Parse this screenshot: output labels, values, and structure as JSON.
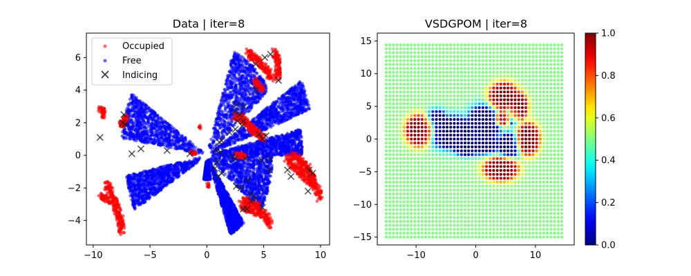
{
  "chart_data": [
    {
      "type": "scatter",
      "title": "Data | iter=8",
      "xlim": [
        -10.6,
        10.8
      ],
      "ylim": [
        -5.5,
        7.5
      ],
      "xticks": [
        -10,
        -5,
        0,
        5,
        10
      ],
      "yticks": [
        -4,
        -2,
        0,
        2,
        4,
        6
      ],
      "xtick_labels": [
        "−10",
        "−5",
        "0",
        "5",
        "10"
      ],
      "ytick_labels": [
        "−4",
        "−2",
        "0",
        "2",
        "4",
        "6"
      ],
      "grid": false,
      "legend_position": "top-left",
      "legend": [
        {
          "label": "Occupied",
          "marker": "dot",
          "color": "#ff0000"
        },
        {
          "label": "Free",
          "marker": "dot",
          "color": "#0000ff"
        },
        {
          "label": "Indicing",
          "marker": "x",
          "color": "#222222"
        }
      ],
      "free_wedges": [
        {
          "angle_from": 17,
          "angle_to": 29,
          "radius_from": 0.2,
          "radius_to": 9.5
        },
        {
          "angle_from": 36,
          "angle_to": 70,
          "radius_from": 0.2,
          "radius_to": 6.8
        },
        {
          "angle_from": 150,
          "angle_to": 172,
          "radius_from": 0.2,
          "radius_to": 7.6
        },
        {
          "angle_from": 190,
          "angle_to": 208,
          "radius_from": 0.2,
          "radius_to": 7.2
        },
        {
          "angle_from": 260,
          "angle_to": 282,
          "radius_from": 0.3,
          "radius_to": 1.5
        },
        {
          "angle_from": 293,
          "angle_to": 308,
          "radius_from": 0.2,
          "radius_to": 5.3
        },
        {
          "angle_from": 324,
          "angle_to": 360,
          "radius_from": 0.2,
          "radius_to": 5.8
        },
        {
          "angle_from": 0,
          "angle_to": 11,
          "radius_from": 0.2,
          "radius_to": 8.4
        }
      ],
      "occupied_polylines": [
        {
          "points": [
            [
              3.6,
              6.3
            ],
            [
              4.0,
              6.1
            ],
            [
              4.4,
              5.9
            ],
            [
              4.9,
              5.5
            ],
            [
              5.3,
              5.1
            ],
            [
              5.7,
              4.8
            ]
          ],
          "width": 0.55
        },
        {
          "points": [
            [
              5.9,
              6.4
            ],
            [
              6.2,
              6.0
            ],
            [
              6.3,
              5.6
            ],
            [
              6.3,
              5.2
            ],
            [
              6.2,
              4.8
            ]
          ],
          "width": 0.5
        },
        {
          "points": [
            [
              4.2,
              4.6
            ],
            [
              4.6,
              4.3
            ],
            [
              4.9,
              4.0
            ]
          ],
          "width": 0.35
        },
        {
          "points": [
            [
              2.5,
              2.4
            ],
            [
              2.9,
              2.3
            ],
            [
              3.3,
              2.1
            ],
            [
              3.8,
              1.8
            ],
            [
              4.2,
              1.5
            ],
            [
              4.6,
              1.3
            ],
            [
              5.0,
              1.0
            ]
          ],
          "width": 0.5
        },
        {
          "points": [
            [
              2.6,
              0.0
            ],
            [
              3.0,
              0.0
            ],
            [
              3.4,
              -0.1
            ]
          ],
          "width": 0.3
        },
        {
          "points": [
            [
              7.1,
              -0.2
            ],
            [
              7.4,
              -0.4
            ],
            [
              7.7,
              -0.7
            ],
            [
              8.2,
              -1.0
            ],
            [
              8.7,
              -1.3
            ],
            [
              9.2,
              -1.6
            ],
            [
              9.7,
              -2.1
            ],
            [
              9.9,
              -2.6
            ]
          ],
          "width": 0.55
        },
        {
          "points": [
            [
              7.6,
              0.0
            ],
            [
              7.9,
              -0.1
            ],
            [
              8.3,
              -0.4
            ],
            [
              8.7,
              -0.7
            ],
            [
              9.1,
              -1.0
            ],
            [
              9.4,
              -1.5
            ]
          ],
          "width": 0.5
        },
        {
          "points": [
            [
              3.0,
              -3.0
            ],
            [
              3.5,
              -3.2
            ],
            [
              4.0,
              -3.4
            ],
            [
              4.5,
              -3.5
            ],
            [
              5.0,
              -3.6
            ],
            [
              5.4,
              -3.9
            ],
            [
              5.6,
              -4.3
            ]
          ],
          "width": 0.5
        },
        {
          "points": [
            [
              3.2,
              -2.7
            ],
            [
              3.6,
              -2.8
            ],
            [
              4.0,
              -3.0
            ],
            [
              4.6,
              -3.1
            ]
          ],
          "width": 0.35
        },
        {
          "points": [
            [
              -8.8,
              -1.7
            ],
            [
              -8.6,
              -2.1
            ],
            [
              -8.3,
              -2.6
            ],
            [
              -8.0,
              -3.1
            ],
            [
              -7.8,
              -3.6
            ],
            [
              -7.6,
              -4.0
            ],
            [
              -7.5,
              -4.4
            ],
            [
              -7.6,
              -4.7
            ]
          ],
          "width": 0.55
        },
        {
          "points": [
            [
              -9.4,
              -2.5
            ],
            [
              -9.0,
              -2.6
            ],
            [
              -8.6,
              -2.8
            ]
          ],
          "width": 0.35
        },
        {
          "points": [
            [
              -9.4,
              2.9
            ],
            [
              -9.1,
              2.7
            ],
            [
              -9.1,
              2.4
            ]
          ],
          "width": 0.35
        },
        {
          "points": [
            [
              -7.6,
              1.9
            ],
            [
              -7.3,
              2.1
            ],
            [
              -7.1,
              2.3
            ],
            [
              -7.5,
              1.8
            ]
          ],
          "width": 0.35
        },
        {
          "points": [
            [
              -1.4,
              0.2
            ],
            [
              -1.0,
              0.1
            ]
          ],
          "width": 0.2
        },
        {
          "points": [
            [
              0.1,
              -1.7
            ],
            [
              0.1,
              -1.9
            ]
          ],
          "width": 0.2
        },
        {
          "points": [
            [
              -0.6,
              1.7
            ],
            [
              -0.6,
              1.8
            ]
          ],
          "width": 0.2
        }
      ],
      "indicing_points": [
        [
          5.1,
          6.0
        ],
        [
          5.6,
          6.2
        ],
        [
          4.3,
          5.6
        ],
        [
          6.3,
          4.6
        ],
        [
          4.3,
          4.0
        ],
        [
          2.6,
          3.1
        ],
        [
          3.2,
          3.0
        ],
        [
          2.5,
          2.7
        ],
        [
          2.9,
          2.5
        ],
        [
          2.7,
          2.1
        ],
        [
          3.2,
          2.1
        ],
        [
          2.5,
          1.6
        ],
        [
          3.1,
          1.8
        ],
        [
          2.0,
          1.4
        ],
        [
          4.6,
          1.3
        ],
        [
          4.9,
          1.0
        ],
        [
          5.2,
          1.2
        ],
        [
          1.1,
          0.8
        ],
        [
          1.3,
          0.9
        ],
        [
          0.8,
          0.3
        ],
        [
          1.2,
          0.2
        ],
        [
          2.2,
          -0.1
        ],
        [
          2.5,
          -0.2
        ],
        [
          3.4,
          -0.2
        ],
        [
          4.8,
          -0.3
        ],
        [
          5.5,
          -0.2
        ],
        [
          0.9,
          -0.4
        ],
        [
          0.7,
          -0.8
        ],
        [
          1.0,
          -1.3
        ],
        [
          1.3,
          -1.1
        ],
        [
          5.5,
          -0.9
        ],
        [
          7.1,
          -0.9
        ],
        [
          7.4,
          -1.3
        ],
        [
          9.0,
          -0.9
        ],
        [
          9.3,
          -1.1
        ],
        [
          8.9,
          -2.2
        ],
        [
          2.6,
          -1.9
        ],
        [
          3.0,
          -2.0
        ],
        [
          3.6,
          -1.5
        ],
        [
          3.9,
          -2.4
        ],
        [
          4.3,
          -2.6
        ],
        [
          3.9,
          -2.8
        ],
        [
          3.2,
          -3.3
        ],
        [
          3.5,
          -3.3
        ],
        [
          4.9,
          -3.2
        ],
        [
          -7.3,
          2.5
        ],
        [
          -7.4,
          2.0
        ],
        [
          -7.2,
          1.9
        ],
        [
          -9.4,
          1.1
        ],
        [
          -6.6,
          0.1
        ],
        [
          -5.8,
          0.4
        ],
        [
          -3.5,
          0.3
        ],
        [
          -1.5,
          0.1
        ]
      ]
    },
    {
      "type": "heatmap",
      "title": "VSDGPOM | iter=8",
      "xlim": [
        -16.5,
        16.5
      ],
      "ylim": [
        -16.2,
        16.2
      ],
      "xticks": [
        -10,
        0,
        10
      ],
      "yticks": [
        -15,
        -10,
        -5,
        0,
        5,
        10,
        15
      ],
      "xtick_labels": [
        "−10",
        "0",
        "10"
      ],
      "ytick_labels": [
        "−15",
        "−10",
        "−5",
        "0",
        "5",
        "10",
        "15"
      ],
      "grid_range": [
        -15,
        14.6
      ],
      "grid_step": 0.6,
      "prior_value": 0.5,
      "colorbar": {
        "cmap": "jet",
        "range": [
          0,
          1
        ],
        "ticks": [
          0.0,
          0.2,
          0.4,
          0.6,
          0.8,
          1.0
        ],
        "tick_labels": [
          "0.0",
          "0.2",
          "0.4",
          "0.6",
          "0.8",
          "1.0"
        ]
      },
      "free_regions": [
        {
          "x": -4.0,
          "y": 1.0,
          "rx": 4.2,
          "ry": 2.6
        },
        {
          "x": -6.5,
          "y": 2.5,
          "rx": 2.0,
          "ry": 2.0
        },
        {
          "x": 1.5,
          "y": 2.5,
          "rx": 3.0,
          "ry": 2.8
        },
        {
          "x": 0.5,
          "y": -0.8,
          "rx": 4.0,
          "ry": 1.6
        },
        {
          "x": 5.5,
          "y": -1.0,
          "rx": 2.0,
          "ry": 2.0
        },
        {
          "x": -1.5,
          "y": -1.3,
          "rx": 2.5,
          "ry": 1.3
        },
        {
          "x": 6.0,
          "y": 3.5,
          "rx": 1.4,
          "ry": 1.4
        }
      ],
      "occupied_regions": [
        {
          "x": -9.5,
          "y": 1.3,
          "rx": 2.4,
          "ry": 2.5
        },
        {
          "x": 4.7,
          "y": 6.5,
          "rx": 2.6,
          "ry": 2.3
        },
        {
          "x": 7.0,
          "y": 5.0,
          "rx": 1.8,
          "ry": 2.4
        },
        {
          "x": 4.5,
          "y": 3.2,
          "rx": 1.3,
          "ry": 1.3
        },
        {
          "x": 8.8,
          "y": 0.0,
          "rx": 2.0,
          "ry": 2.6
        },
        {
          "x": 4.2,
          "y": -4.6,
          "rx": 3.0,
          "ry": 1.9
        }
      ]
    }
  ]
}
